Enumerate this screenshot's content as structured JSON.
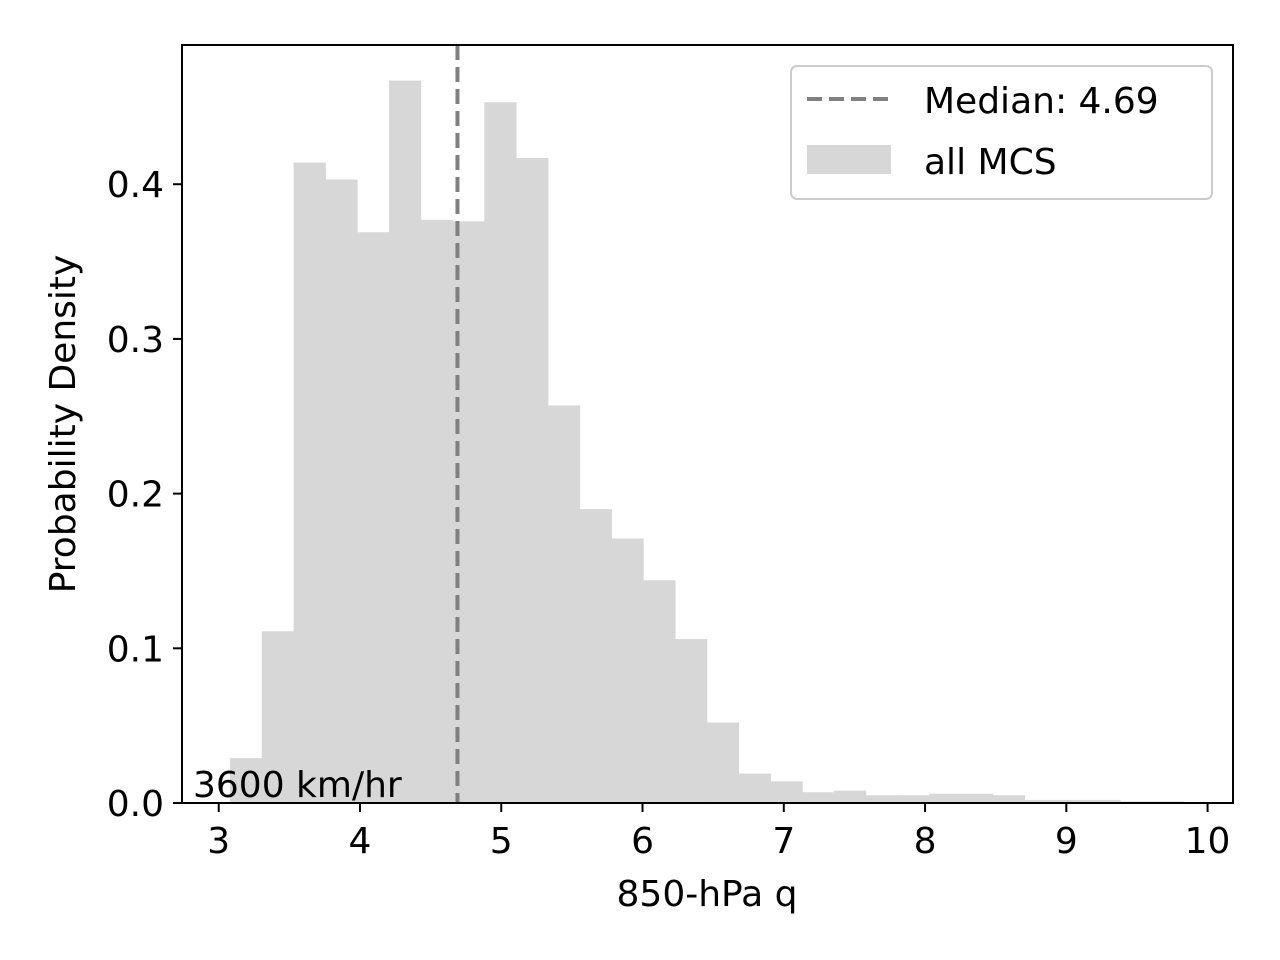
{
  "chart_data": {
    "type": "bar",
    "xlabel": "850-hPa q",
    "ylabel": "Probability Density",
    "xlim": [
      2.74,
      10.18
    ],
    "ylim": [
      0.0,
      0.49
    ],
    "xticks": [
      3,
      4,
      5,
      6,
      7,
      8,
      9,
      10
    ],
    "yticks": [
      0.0,
      0.1,
      0.2,
      0.3,
      0.4
    ],
    "xtick_labels": [
      "3",
      "4",
      "5",
      "6",
      "7",
      "8",
      "9",
      "10"
    ],
    "ytick_labels": [
      "0.0",
      "0.1",
      "0.2",
      "0.3",
      "0.4"
    ],
    "grid": false,
    "bin_edges": [
      3.08,
      3.305,
      3.53,
      3.755,
      3.98,
      4.205,
      4.43,
      4.655,
      4.88,
      5.105,
      5.33,
      5.555,
      5.78,
      6.005,
      6.23,
      6.455,
      6.68,
      6.905,
      7.13,
      7.355,
      7.58,
      7.805,
      8.03,
      8.255,
      8.48,
      8.705,
      8.93,
      9.155,
      9.38,
      9.605,
      9.83
    ],
    "values": [
      0.029,
      0.111,
      0.414,
      0.403,
      0.369,
      0.467,
      0.377,
      0.376,
      0.453,
      0.417,
      0.257,
      0.19,
      0.171,
      0.144,
      0.106,
      0.052,
      0.019,
      0.014,
      0.007,
      0.008,
      0.005,
      0.005,
      0.006,
      0.006,
      0.005,
      0.002,
      0.002,
      0.002,
      0.001,
      0.001
    ],
    "bar_color": "#d7d7d7",
    "median": 4.69,
    "median_color": "#808080",
    "legend": {
      "position": "top-right",
      "items": [
        {
          "label": "Median: 4.69",
          "kind": "dashed-line",
          "color": "#808080"
        },
        {
          "label": "all MCS",
          "kind": "patch",
          "color": "#d7d7d7"
        }
      ]
    },
    "annotation": "3600 km/hr"
  }
}
